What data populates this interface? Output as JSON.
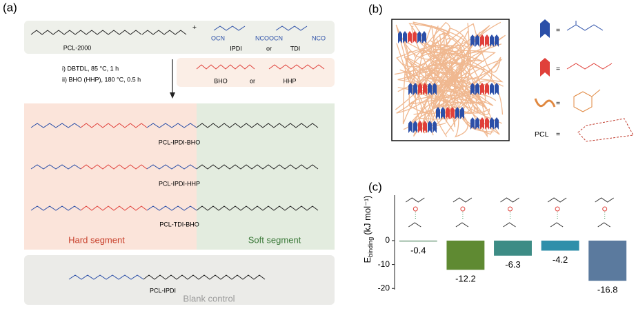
{
  "panel_labels": [
    "(a)",
    "(b)",
    "(c)"
  ],
  "scheme": {
    "pcl2000": "PCL-2000",
    "plus": "+",
    "ipdi": "IPDI",
    "or1": "or",
    "tdi": "TDI",
    "ocn": "OCN",
    "nco": "NCO",
    "step1": "i) DBTDL, 85 °C, 1 h",
    "step2": "ii) BHO (HHP), 180 °C, 0.5 h",
    "bho": "BHO",
    "or2": "or",
    "hhp": "HHP",
    "products": [
      "PCL-IPDI-BHO",
      "PCL-IPDI-HHP",
      "PCL-TDI-BHO"
    ],
    "hard": "Hard segment",
    "soft": "Soft segment",
    "control": "PCL-IPDI",
    "control_note": "Blank control"
  },
  "legend": {
    "eq": [
      "=",
      "=",
      "=",
      "="
    ],
    "pcl": "PCL"
  },
  "chart_data": {
    "type": "bar",
    "y_label": "E",
    "y_label_sub": "binding",
    "y_label_unit": "(kJ mol⁻¹)",
    "categories": [
      null,
      null,
      null,
      null,
      null
    ],
    "values": [
      -0.4,
      -12.2,
      -6.3,
      -4.2,
      -16.8
    ],
    "colors": [
      "#6a9a78",
      "#5f8a32",
      "#3d8c85",
      "#2f8faa",
      "#5b7a9e"
    ],
    "ylim": [
      -20.5,
      19
    ],
    "yticks": [
      0,
      -10,
      -20
    ]
  }
}
